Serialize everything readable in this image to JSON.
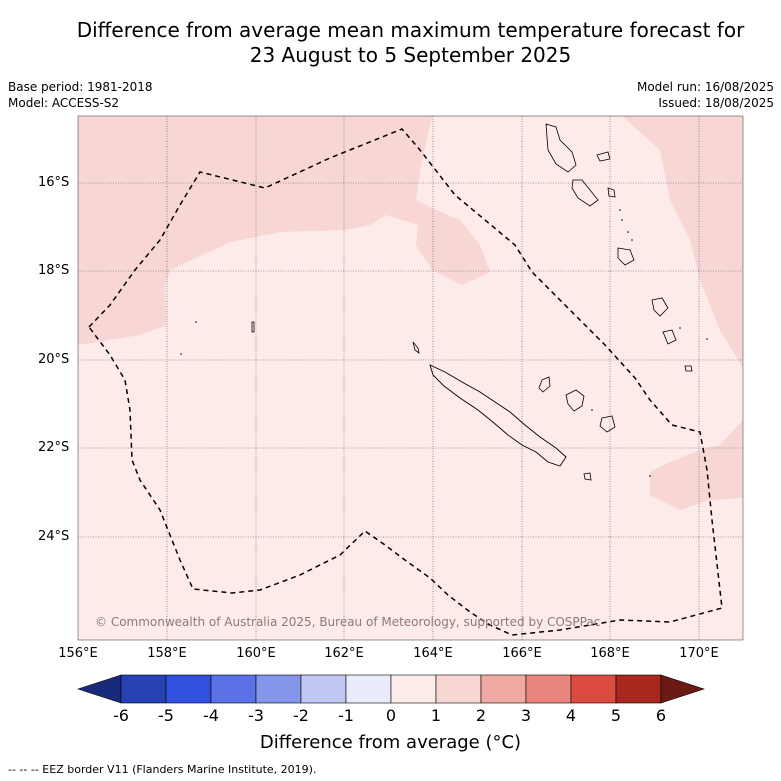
{
  "title_line1": "Difference from average mean maximum temperature forecast for",
  "title_line2": "23 August to 5 September 2025",
  "meta": {
    "base_period": "Base period: 1981-2018",
    "model": "Model: ACCESS-S2",
    "model_run": "Model run: 16/08/2025",
    "issued": "Issued: 18/08/2025"
  },
  "lat_labels": [
    "16°S",
    "18°S",
    "20°S",
    "22°S",
    "24°S"
  ],
  "lon_labels": [
    "156°E",
    "158°E",
    "160°E",
    "162°E",
    "164°E",
    "166°E",
    "168°E",
    "170°E"
  ],
  "copyright": "© Commonwealth of Australia 2025, Bureau of Meteorology, supported by COSPPac",
  "colorbar": {
    "ticks": [
      "-6",
      "-5",
      "-4",
      "-3",
      "-2",
      "-1",
      "0",
      "1",
      "2",
      "3",
      "4",
      "5",
      "6"
    ],
    "label": "Difference from average (°C)",
    "colors": [
      "#1a2a7a",
      "#2541b2",
      "#3050e0",
      "#5a72e6",
      "#8596ea",
      "#c0c8f3",
      "#e9ecfa",
      "#fdecea",
      "#f7d6d4",
      "#f0aaa4",
      "#e8867e",
      "#db4b40",
      "#a8281f",
      "#6b1a14"
    ]
  },
  "legend_footer": "--  --  -- EEZ border V11 (Flanders Marine Institute, 2019)."
}
